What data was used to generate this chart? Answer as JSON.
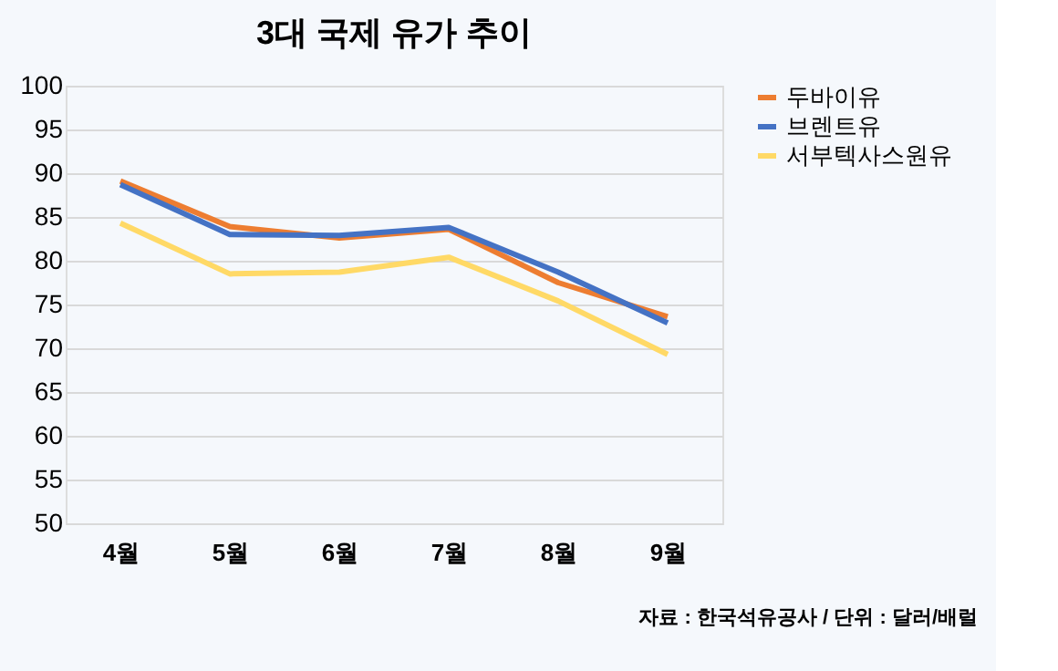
{
  "chart_data": {
    "type": "line",
    "title": "3대 국제 유가 추이",
    "categories": [
      "4월",
      "5월",
      "6월",
      "7월",
      "8월",
      "9월"
    ],
    "series": [
      {
        "name": "두바이유",
        "color": "#ed7d31",
        "values": [
          89.1,
          83.9,
          82.6,
          83.6,
          77.5,
          73.6
        ]
      },
      {
        "name": "브렌트유",
        "color": "#4472c4",
        "values": [
          88.7,
          83.0,
          82.9,
          83.8,
          78.7,
          72.9
        ]
      },
      {
        "name": "서부텍사스원유",
        "color": "#ffd966",
        "values": [
          84.3,
          78.5,
          78.7,
          80.4,
          75.4,
          69.3
        ]
      }
    ],
    "ylim": [
      50,
      100
    ],
    "yticks": [
      50,
      55,
      60,
      65,
      70,
      75,
      80,
      85,
      90,
      95,
      100
    ],
    "grid": "y",
    "legend": "right",
    "marker": "none",
    "line_style": "solid",
    "annotations": [
      "자료 : 한국석유공사 / 단위 : 달러/배럴"
    ]
  }
}
